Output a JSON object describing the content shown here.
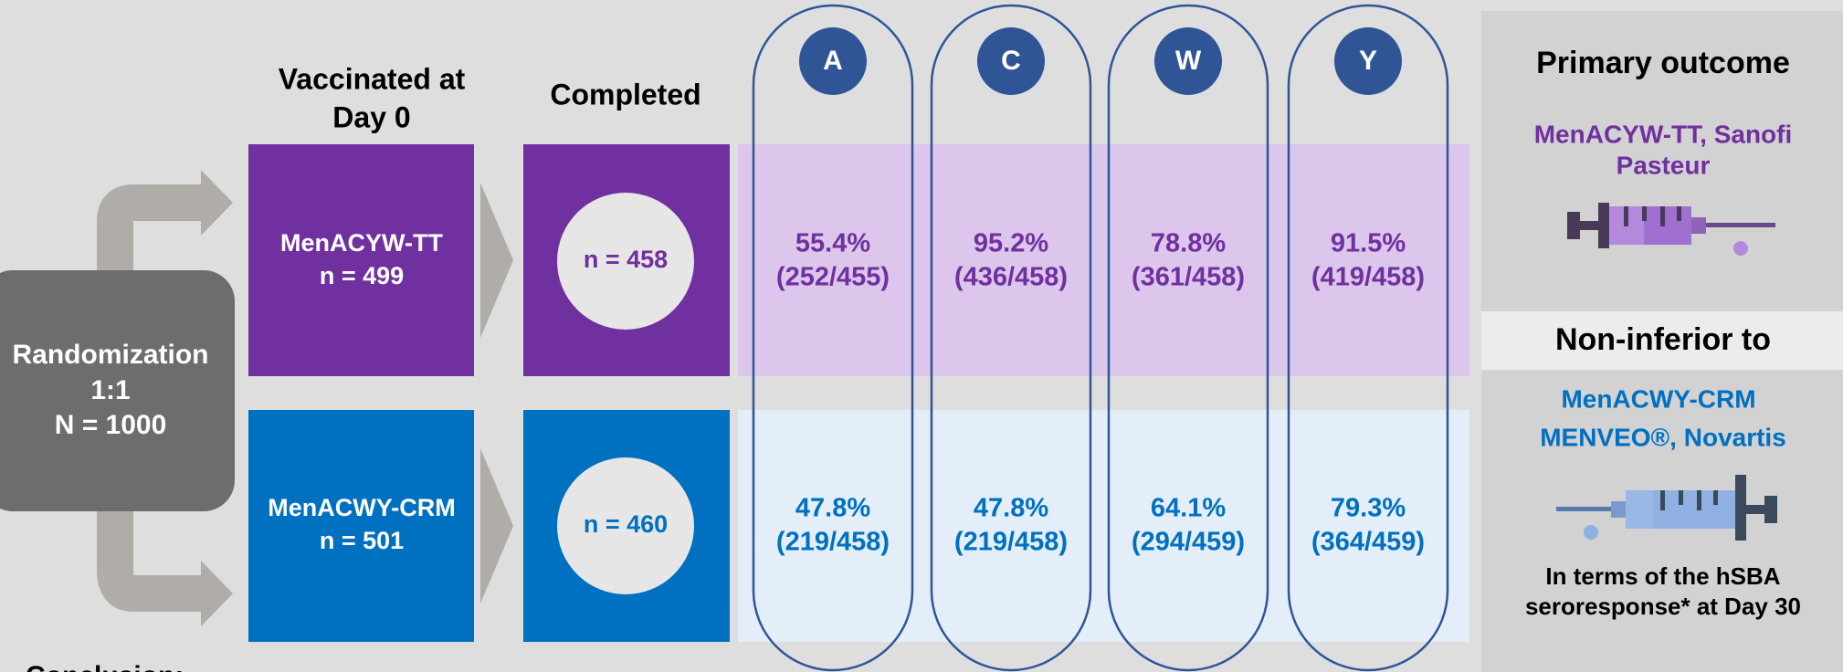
{
  "headers": {
    "vaccinated": [
      "Vaccinated at",
      "Day 0"
    ],
    "completed": "Completed"
  },
  "randomization": [
    "Randomization",
    "1:1",
    "N = 1000"
  ],
  "serogroups": [
    "A",
    "C",
    "W",
    "Y"
  ],
  "arms": [
    {
      "name": "MenACYW-TT",
      "enrolled": "n = 499",
      "completed": "n = 458",
      "results": [
        [
          "55.4%",
          "(252/455)"
        ],
        [
          "95.2%",
          "(436/458)"
        ],
        [
          "78.8%",
          "(361/458)"
        ],
        [
          "91.5%",
          "(419/458)"
        ]
      ]
    },
    {
      "name": "MenACWY-CRM",
      "enrolled": "n = 501",
      "completed": "n = 460",
      "results": [
        [
          "47.8%",
          "(219/458)"
        ],
        [
          "47.8%",
          "(219/458)"
        ],
        [
          "64.1%",
          "(294/459)"
        ],
        [
          "79.3%",
          "(364/459)"
        ]
      ]
    }
  ],
  "outcome": {
    "title": "Primary outcome",
    "vaccine": [
      "MenACYW-TT, Sanofi",
      "Pasteur"
    ],
    "comparison": "Non-inferior to",
    "comparator": [
      "MenACWY-CRM",
      "MENVEO®, Novartis"
    ],
    "criterion": [
      "In terms of the hSBA",
      "seroresponse* at Day 30"
    ]
  },
  "conclusion": "Conclusion:"
}
